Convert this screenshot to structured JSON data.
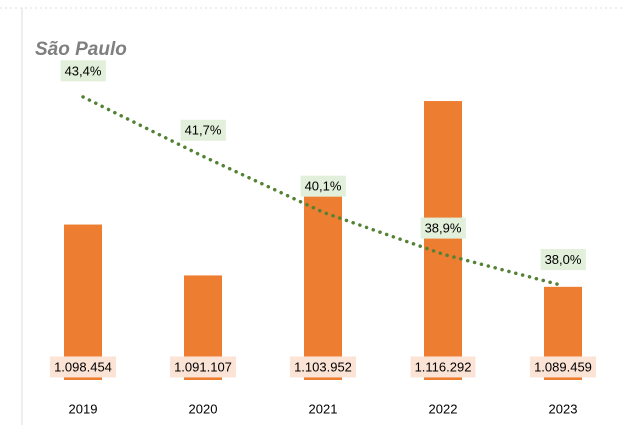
{
  "chart_data": {
    "type": "bar",
    "title": "São Paulo",
    "categories": [
      "2019",
      "2020",
      "2021",
      "2022",
      "2023"
    ],
    "ylim": [
      1076000,
      1128000
    ],
    "y2lim": [
      35.3,
      45.6
    ],
    "series": [
      {
        "type": "bar",
        "color": "#ed7d31",
        "label_bg": "#fbe3d6",
        "values": [
          1098454,
          1091107,
          1103952,
          1116292,
          1089459
        ],
        "value_labels": [
          "1.098.454",
          "1.091.107",
          "1.103.952",
          "1.116.292",
          "1.089.459"
        ]
      },
      {
        "type": "line",
        "axis": "y2",
        "color": "#548235",
        "label_bg": "#e2efda",
        "dotted": true,
        "values": [
          43.4,
          41.7,
          40.1,
          38.9,
          38.0
        ],
        "value_labels": [
          "43,4%",
          "41,7%",
          "40,1%",
          "38,9%",
          "38,0%"
        ]
      }
    ]
  }
}
